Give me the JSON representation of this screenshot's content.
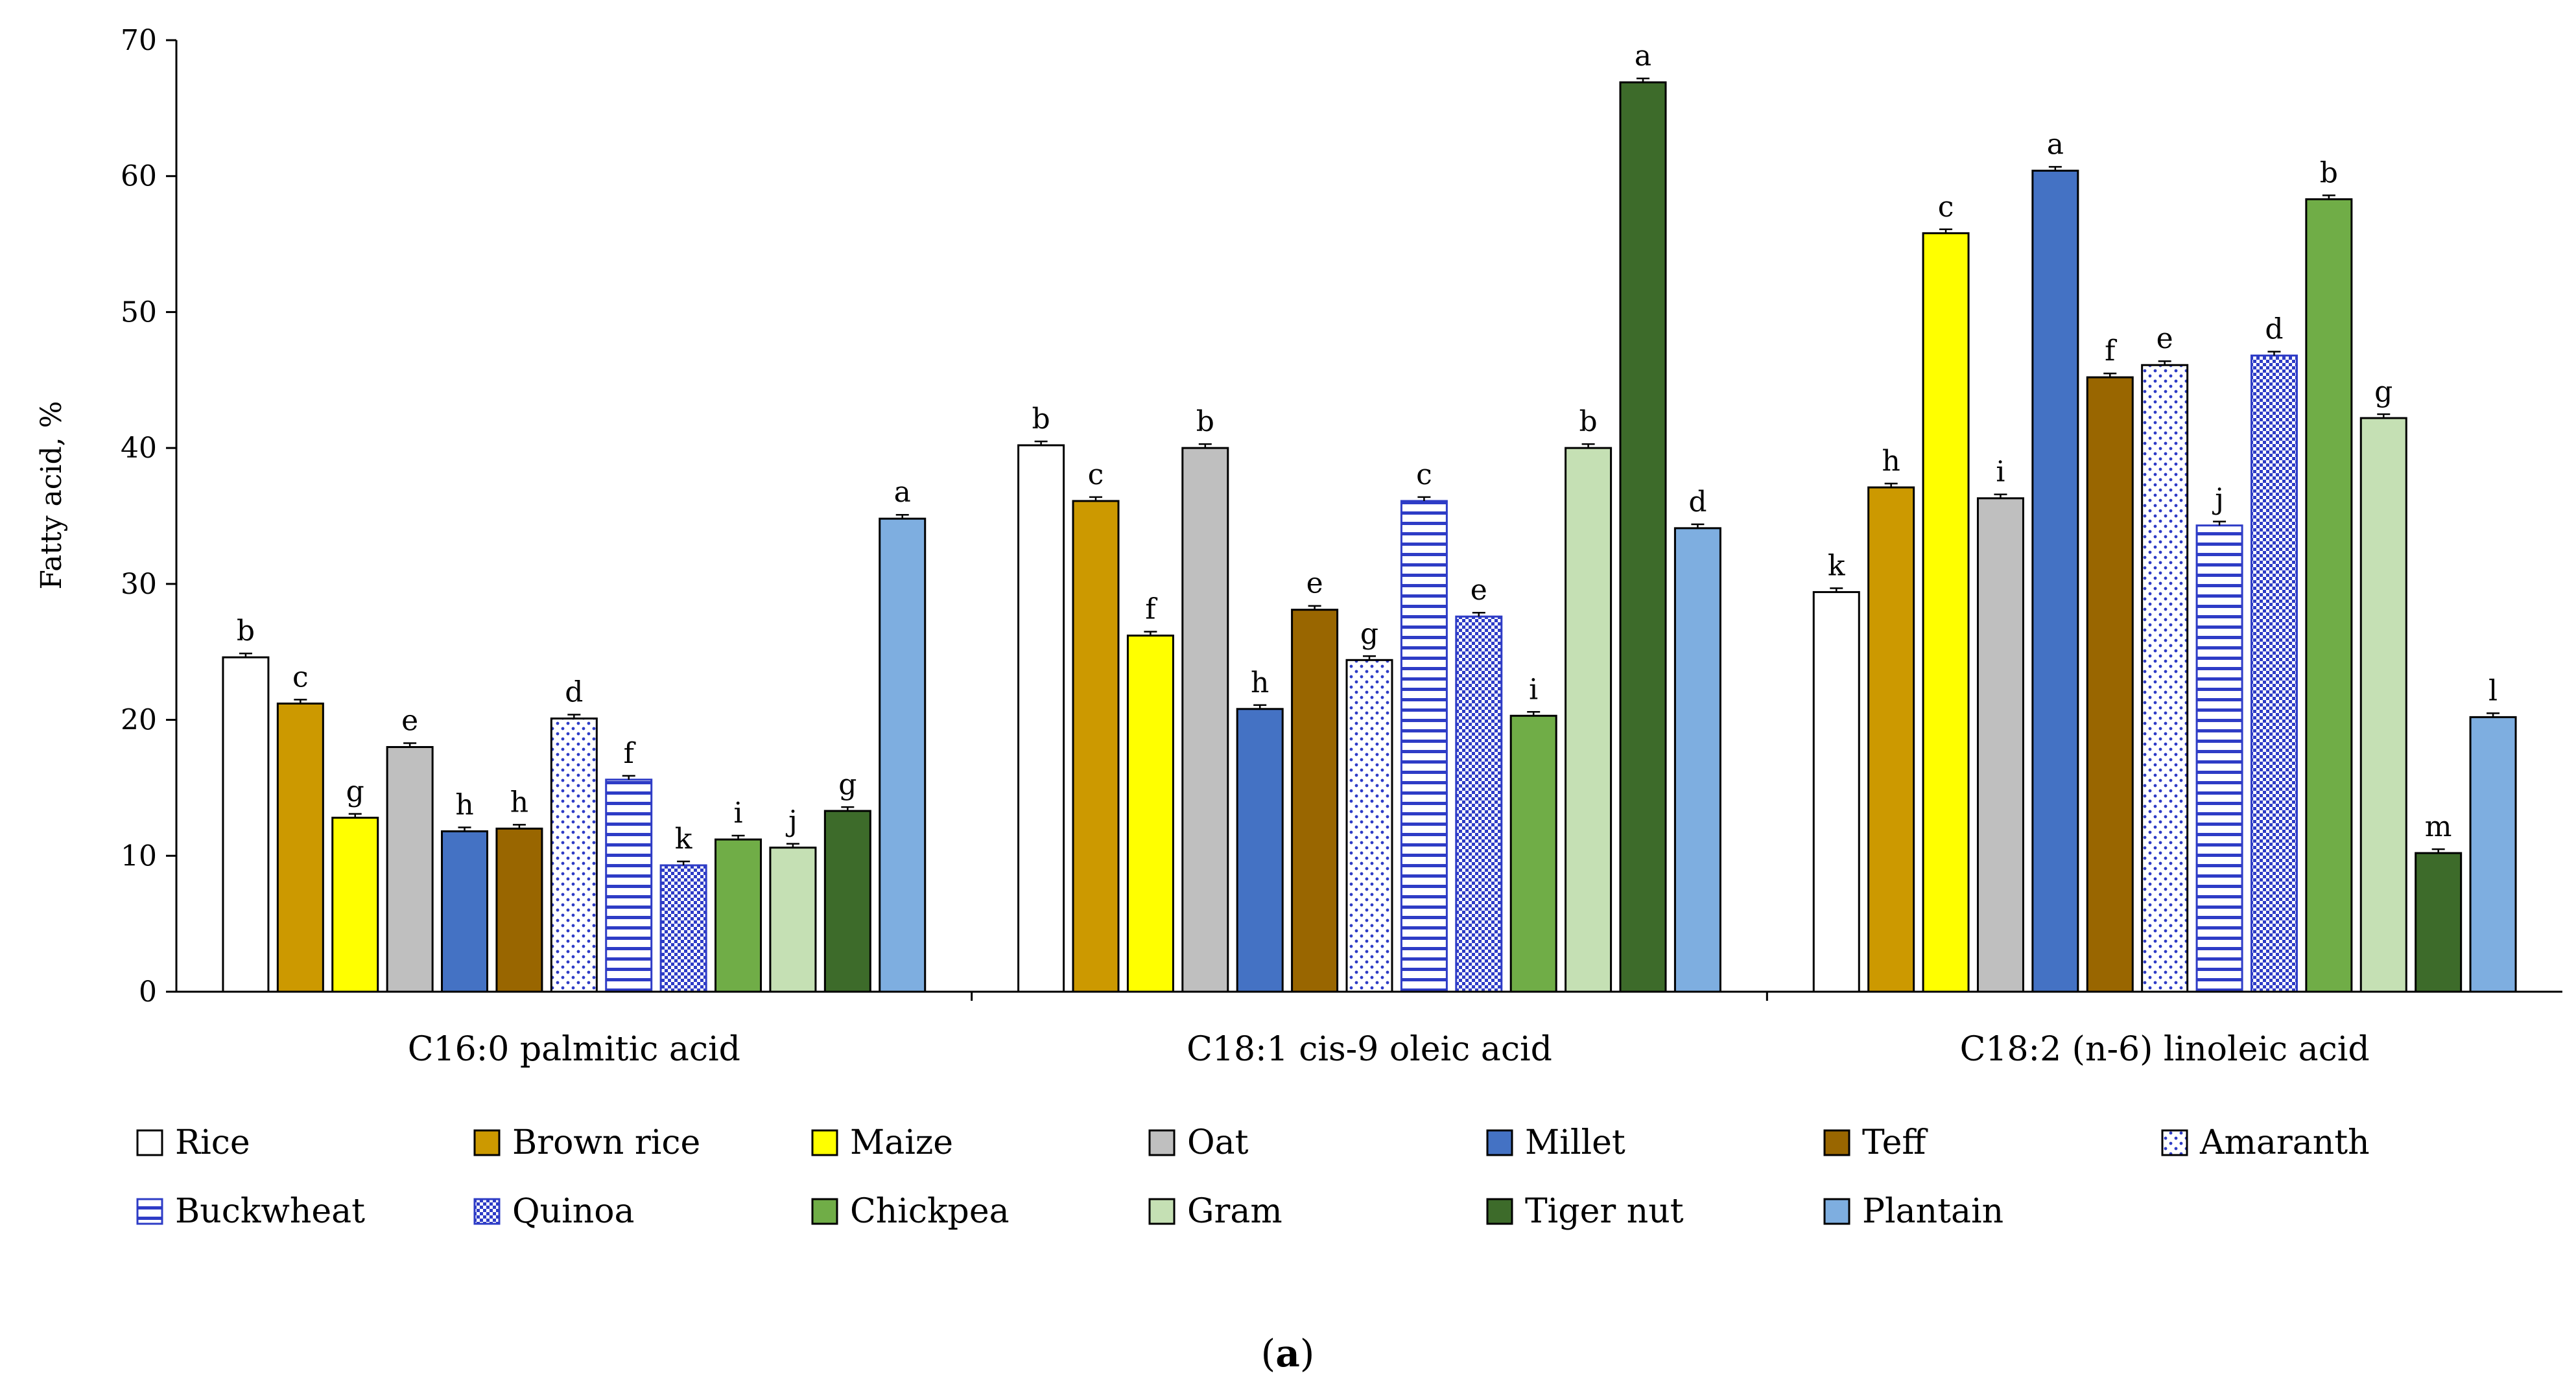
{
  "chart_data": {
    "type": "bar",
    "title": "",
    "xlabel": "",
    "ylabel": "Fatty acid, %",
    "ylim": [
      0,
      70
    ],
    "yticks": [
      0,
      10,
      20,
      30,
      40,
      50,
      60,
      70
    ],
    "grid": false,
    "legend_position": "bottom",
    "categories": [
      "C16:0 palmitic acid",
      "C18:1 cis-9 oleic acid",
      "C18:2 (n-6) linoleic acid"
    ],
    "series": [
      {
        "name": "Rice",
        "color": "#ffffff",
        "pattern": "solid",
        "values": [
          24.6,
          40.2,
          29.4
        ],
        "letters": [
          "b",
          "b",
          "k"
        ]
      },
      {
        "name": "Brown rice",
        "color": "#cc9900",
        "pattern": "solid",
        "values": [
          21.2,
          36.1,
          37.1
        ],
        "letters": [
          "c",
          "c",
          "h"
        ]
      },
      {
        "name": "Maize",
        "color": "#ffff00",
        "pattern": "solid",
        "values": [
          12.8,
          26.2,
          55.8
        ],
        "letters": [
          "g",
          "f",
          "c"
        ]
      },
      {
        "name": "Oat",
        "color": "#bfbfbf",
        "pattern": "solid",
        "values": [
          18.0,
          40.0,
          36.3
        ],
        "letters": [
          "e",
          "b",
          "i"
        ]
      },
      {
        "name": "Millet",
        "color": "#4472c4",
        "pattern": "solid",
        "values": [
          11.8,
          20.8,
          60.4
        ],
        "letters": [
          "h",
          "h",
          "a"
        ]
      },
      {
        "name": "Teff",
        "color": "#996600",
        "pattern": "solid",
        "values": [
          12.0,
          28.1,
          45.2
        ],
        "letters": [
          "h",
          "e",
          "f"
        ]
      },
      {
        "name": "Amaranth",
        "color": "#ffffff",
        "pattern": "dots",
        "values": [
          20.1,
          24.4,
          46.1
        ],
        "letters": [
          "d",
          "g",
          "e"
        ]
      },
      {
        "name": "Buckwheat",
        "color": "#ffffff",
        "pattern": "hlines",
        "values": [
          15.6,
          36.1,
          34.3
        ],
        "letters": [
          "f",
          "c",
          "j"
        ]
      },
      {
        "name": "Quinoa",
        "color": "#2e3cc6",
        "pattern": "checker",
        "values": [
          9.3,
          27.6,
          46.8
        ],
        "letters": [
          "k",
          "e",
          "d"
        ]
      },
      {
        "name": "Chickpea",
        "color": "#70ad47",
        "pattern": "solid",
        "values": [
          11.2,
          20.3,
          58.3
        ],
        "letters": [
          "i",
          "i",
          "b"
        ]
      },
      {
        "name": "Gram",
        "color": "#c5e0b4",
        "pattern": "solid",
        "values": [
          10.6,
          40.0,
          42.2
        ],
        "letters": [
          "j",
          "b",
          "g"
        ]
      },
      {
        "name": "Tiger nut",
        "color": "#3d6b2a",
        "pattern": "solid",
        "values": [
          13.3,
          66.9,
          10.2
        ],
        "letters": [
          "g",
          "a",
          "m"
        ]
      },
      {
        "name": "Plantain",
        "color": "#7eaee0",
        "pattern": "solid",
        "values": [
          34.8,
          34.1,
          20.2
        ],
        "letters": [
          "a",
          "d",
          "l"
        ]
      }
    ]
  },
  "caption": {
    "open": "(",
    "letter": "a",
    "close": ")"
  }
}
